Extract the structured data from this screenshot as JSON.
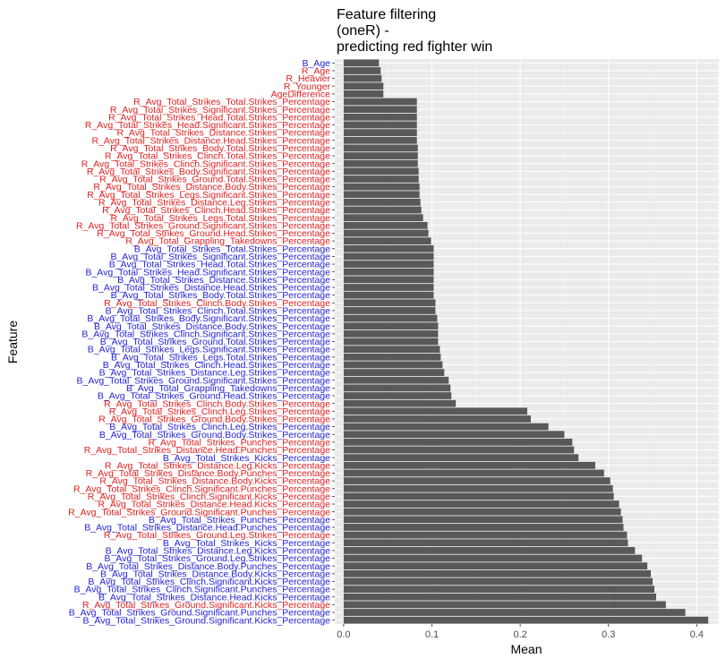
{
  "chart_data": {
    "type": "bar",
    "orientation": "horizontal",
    "title_lines": [
      "Feature filtering",
      "(oneR) -",
      "predicting red fighter win"
    ],
    "xlabel": "Mean",
    "ylabel": "Feature",
    "xlim": [
      -0.01,
      0.425
    ],
    "x_ticks": [
      0.0,
      0.1,
      0.2,
      0.3,
      0.4
    ],
    "x_tick_labels": [
      "0.0",
      "0.1",
      "0.2",
      "0.3",
      "0.4"
    ],
    "grid": true,
    "colors": {
      "panel": "#ebebeb",
      "grid_major": "#ffffff",
      "grid_minor": "#f5f5f5",
      "bar": "#595959",
      "label_blue": "#1f1fd6",
      "label_red": "#e01f1f",
      "axis_text": "#4d4d4d"
    },
    "categories": [
      "B_Age",
      "R_Age",
      "R_Heavier",
      "R_Younger",
      "AgeDifference",
      "R_Avg_Total_Strikes_Total.Strikes_Percentage",
      "R_Avg_Total_Strikes_Significant.Strikes_Percentage",
      "R_Avg_Total_Strikes_Head.Total.Strikes_Percentage",
      "R_Avg_Total_Strikes_Head.Significant.Strikes_Percentage",
      "R_Avg_Total_Strikes_Distance.Strikes_Percentage",
      "R_Avg_Total_Strikes_Distance.Head.Strikes_Percentage",
      "R_Avg_Total_Strikes_Body.Total.Strikes_Percentage",
      "R_Avg_Total_Strikes_Clinch.Total.Strikes_Percentage",
      "R_Avg_Total_Strikes_Clinch.Significant.Strikes_Percentage",
      "R_Avg_Total_Strikes_Body.Significant.Strikes_Percentage",
      "R_Avg_Total_Strikes_Ground.Total.Strikes_Percentage",
      "R_Avg_Total_Strikes_Distance.Body.Strikes_Percentage",
      "R_Avg_Total_Strikes_Legs.Significant.Strikes_Percentage",
      "R_Avg_Total_Strikes_Distance.Leg.Strikes_Percentage",
      "R_Avg_Total_Strikes_Clinch.Head.Strikes_Percentage",
      "R_Avg_Total_Strikes_Legs.Total.Strikes_Percentage",
      "R_Avg_Total_Strikes_Ground.Significant.Strikes_Percentage",
      "R_Avg_Total_Strikes_Ground.Head.Strikes_Percentage",
      "R_Avg_Total_Grappling_Takedowns_Percentage",
      "B_Avg_Total_Strikes_Total.Strikes_Percentage",
      "B_Avg_Total_Strikes_Significant.Strikes_Percentage",
      "B_Avg_Total_Strikes_Head.Total.Strikes_Percentage",
      "B_Avg_Total_Strikes_Head.Significant.Strikes_Percentage",
      "B_Avg_Total_Strikes_Distance.Strikes_Percentage",
      "B_Avg_Total_Strikes_Distance.Head.Strikes_Percentage",
      "B_Avg_Total_Strikes_Body.Total.Strikes_Percentage",
      "R_Avg_Total_Strikes_Clinch.Body.Strikes_Percentage",
      "B_Avg_Total_Strikes_Clinch.Total.Strikes_Percentage",
      "B_Avg_Total_Strikes_Body.Significant.Strikes_Percentage",
      "B_Avg_Total_Strikes_Distance.Body.Strikes_Percentage",
      "B_Avg_Total_Strikes_Clinch.Significant.Strikes_Percentage",
      "B_Avg_Total_Strikes_Ground.Total.Strikes_Percentage",
      "B_Avg_Total_Strikes_Legs.Significant.Strikes_Percentage",
      "B_Avg_Total_Strikes_Legs.Total.Strikes_Percentage",
      "B_Avg_Total_Strikes_Clinch.Head.Strikes_Percentage",
      "B_Avg_Total_Strikes_Distance.Leg.Strikes_Percentage",
      "B_Avg_Total_Strikes_Ground.Significant.Strikes_Percentage",
      "B_Avg_Total_Grappling_Takedowns_Percentage",
      "B_Avg_Total_Strikes_Ground.Head.Strikes_Percentage",
      "R_Avg_Total_Strikes_Clinch.Body.Strikes_Percentage",
      "R_Avg_Total_Strikes_Clinch.Leg.Strikes_Percentage",
      "R_Avg_Total_Strikes_Ground.Body.Strikes_Percentage",
      "B_Avg_Total_Strikes_Clinch.Leg.Strikes_Percentage",
      "B_Avg_Total_Strikes_Ground.Body.Strikes_Percentage",
      "R_Avg_Total_Strikes_Punches_Percentage",
      "R_Avg_Total_Strikes_Distance.Head.Punches_Percentage",
      "B_Avg_Total_Strikes_Kicks_Percentage",
      "R_Avg_Total_Strikes_Distance.Leg.Kicks_Percentage",
      "R_Avg_Total_Strikes_Distance.Body.Punches_Percentage",
      "R_Avg_Total_Strikes_Distance.Body.Kicks_Percentage",
      "R_Avg_Total_Strikes_Clinch.Significant.Punches_Percentage",
      "R_Avg_Total_Strikes_Clinch.Significant.Kicks_Percentage",
      "R_Avg_Total_Strikes_Distance.Head.Kicks_Percentage",
      "R_Avg_Total_Strikes_Ground.Significant.Punches_Percentage",
      "B_Avg_Total_Strikes_Punches_Percentage",
      "B_Avg_Total_Strikes_Distance.Head.Punches_Percentage",
      "R_Avg_Total_Strikes_Ground.Leg.Strikes_Percentage",
      "B_Avg_Total_Strikes_Kicks_Percentage",
      "B_Avg_Total_Strikes_Distance.Leg.Kicks_Percentage",
      "B_Avg_Total_Strikes_Ground.Leg.Strikes_Percentage",
      "B_Avg_Total_Strikes_Distance.Body.Punches_Percentage",
      "B_Avg_Total_Strikes_Distance.Body.Kicks_Percentage",
      "B_Avg_Total_Strikes_Clinch.Significant.Kicks_Percentage",
      "B_Avg_Total_Strikes_Clinch.Significant.Punches_Percentage",
      "B_Avg_Total_Strikes_Distance.Head.Kicks_Percentage",
      "R_Avg_Total_Strikes_Ground.Significant.Kicks_Percentage",
      "B_Avg_Total_Strikes_Ground.Significant.Punches_Percentage",
      "B_Avg_Total_Strikes_Ground.Significant.Kicks_Percentage"
    ],
    "values": [
      0.04,
      0.042,
      0.043,
      0.045,
      0.045,
      0.083,
      0.083,
      0.083,
      0.083,
      0.083,
      0.083,
      0.084,
      0.084,
      0.084,
      0.085,
      0.085,
      0.086,
      0.086,
      0.087,
      0.088,
      0.09,
      0.095,
      0.096,
      0.099,
      0.102,
      0.102,
      0.102,
      0.102,
      0.102,
      0.102,
      0.102,
      0.104,
      0.104,
      0.106,
      0.107,
      0.107,
      0.107,
      0.109,
      0.11,
      0.112,
      0.114,
      0.119,
      0.121,
      0.122,
      0.127,
      0.208,
      0.212,
      0.232,
      0.25,
      0.259,
      0.261,
      0.266,
      0.285,
      0.295,
      0.302,
      0.305,
      0.306,
      0.312,
      0.314,
      0.316,
      0.317,
      0.321,
      0.322,
      0.33,
      0.338,
      0.344,
      0.348,
      0.35,
      0.352,
      0.354,
      0.365,
      0.387,
      0.413
    ]
  }
}
